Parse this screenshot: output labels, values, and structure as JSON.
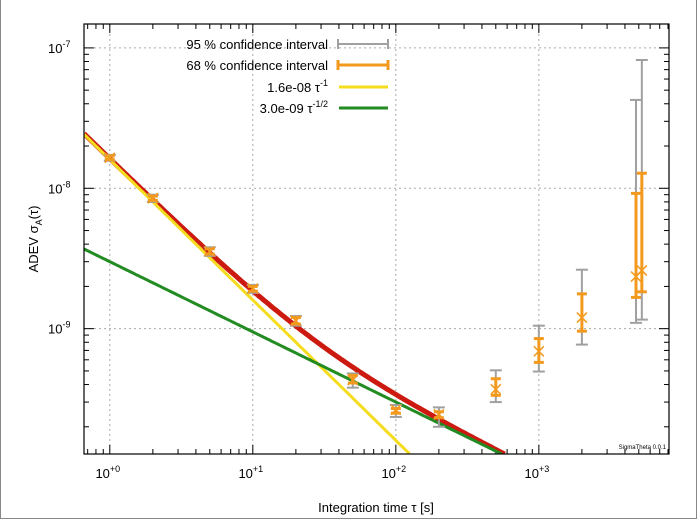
{
  "chart_data": {
    "type": "scatter",
    "title": "",
    "xlabel": "Integration time τ [s]",
    "ylabel": "ADEV σ_A(τ)",
    "ylabel_parts": {
      "main": "ADEV σ",
      "sub": "A",
      "tail": "(τ)"
    },
    "xscale": "log",
    "yscale": "log",
    "xlim": [
      0.66,
      8130
    ],
    "ylim": [
      1.28e-10,
      1.48e-07
    ],
    "grid": true,
    "legend_position": "top-center",
    "x_ticks": [
      {
        "value": 1,
        "base": "10",
        "exp": "+0"
      },
      {
        "value": 10,
        "base": "10",
        "exp": "+1"
      },
      {
        "value": 100,
        "base": "10",
        "exp": "+2"
      },
      {
        "value": 1000,
        "base": "10",
        "exp": "+3"
      }
    ],
    "y_ticks": [
      {
        "value": 1e-07,
        "base": "10",
        "exp": "-7"
      },
      {
        "value": 1e-08,
        "base": "10",
        "exp": "-8"
      },
      {
        "value": 1e-09,
        "base": "10",
        "exp": "-9"
      }
    ],
    "legend": [
      {
        "label": "95 % confidence interval",
        "color": "#a0a0a0",
        "kind": "errorbar"
      },
      {
        "label": "68 % confidence interval",
        "color": "#f39a1e",
        "kind": "errorbar"
      },
      {
        "label_main": "1.6e-08 τ",
        "label_exp": "-1",
        "color": "#f5dc1e",
        "kind": "line"
      },
      {
        "label_main": "3.0e-09 τ",
        "label_exp": "-1/2",
        "color": "#228b22",
        "kind": "line"
      }
    ],
    "fits": [
      {
        "name": "1.6e-08 τ^-1",
        "coef": 1.6e-08,
        "power": -1,
        "color": "#f5dc1e"
      },
      {
        "name": "3.0e-09 τ^-1/2",
        "coef": 3e-09,
        "power": -0.5,
        "color": "#228b22"
      },
      {
        "name": "sum",
        "color": "#cc1a10"
      }
    ],
    "points": [
      {
        "tau": 1,
        "adev": 1.65e-08,
        "ci68": [
          1.6e-08,
          1.7e-08
        ],
        "ci95": [
          1.57e-08,
          1.73e-08
        ]
      },
      {
        "tau": 2,
        "adev": 8.5e-09,
        "ci68": [
          8.2e-09,
          8.8e-09
        ],
        "ci95": [
          8e-09,
          9e-09
        ]
      },
      {
        "tau": 5,
        "adev": 3.55e-09,
        "ci68": [
          3.4e-09,
          3.7e-09
        ],
        "ci95": [
          3.3e-09,
          3.8e-09
        ]
      },
      {
        "tau": 10,
        "adev": 1.93e-09,
        "ci68": [
          1.85e-09,
          2e-09
        ],
        "ci95": [
          1.8e-09,
          2.05e-09
        ]
      },
      {
        "tau": 20,
        "adev": 1.14e-09,
        "ci68": [
          1.08e-09,
          1.2e-09
        ],
        "ci95": [
          1.05e-09,
          1.23e-09
        ]
      },
      {
        "tau": 50,
        "adev": 4.3e-10,
        "ci68": [
          4.1e-10,
          4.65e-10
        ],
        "ci95": [
          3.8e-10,
          4.8e-10
        ]
      },
      {
        "tau": 100,
        "adev": 2.65e-10,
        "ci68": [
          2.5e-10,
          2.7e-10
        ],
        "ci95": [
          2.35e-10,
          2.86e-10
        ]
      },
      {
        "tau": 200,
        "adev": 2.45e-10,
        "ci68": [
          2.32e-10,
          2.56e-10
        ],
        "ci95": [
          2e-10,
          2.75e-10
        ]
      },
      {
        "tau": 500,
        "adev": 3.7e-10,
        "ci68": [
          3.35e-10,
          4.4e-10
        ],
        "ci95": [
          3e-10,
          5.05e-10
        ]
      },
      {
        "tau": 1000,
        "adev": 6.9e-10,
        "ci68": [
          5.75e-10,
          8.5e-10
        ],
        "ci95": [
          4.95e-10,
          1.05e-09
        ]
      },
      {
        "tau": 2000,
        "adev": 1.2e-09,
        "ci68": [
          9.6e-10,
          1.77e-09
        ],
        "ci95": [
          7.7e-10,
          2.63e-09
        ]
      },
      {
        "tau": 4780,
        "adev": 2.35e-09,
        "ci68": [
          1.67e-09,
          9.2e-09
        ],
        "ci95": [
          1.1e-09,
          4.26e-08
        ]
      },
      {
        "tau": 5250,
        "adev": 2.6e-09,
        "ci68": [
          1.83e-09,
          1.28e-08
        ],
        "ci95": [
          1.16e-09,
          8.2e-08
        ]
      }
    ],
    "watermark": "SigmaTheta 0.0.1"
  }
}
